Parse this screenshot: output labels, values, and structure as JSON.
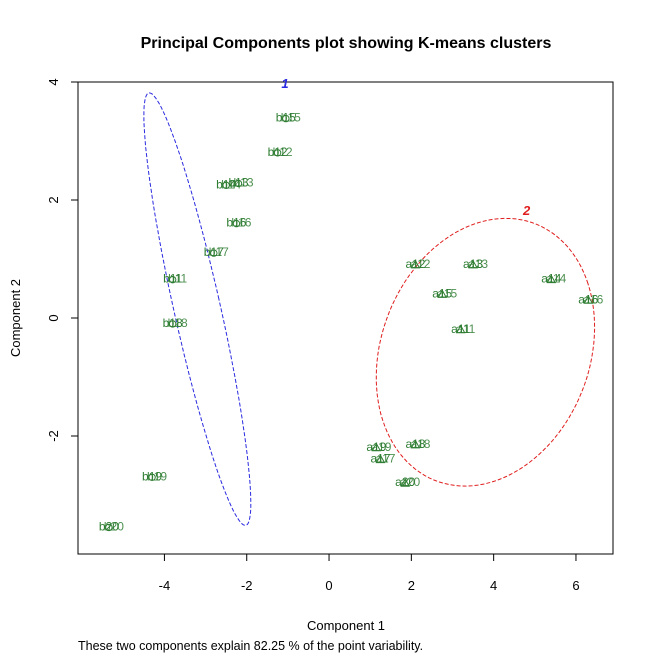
{
  "chart_data": {
    "type": "scatter",
    "title": "Principal Components plot showing K-means clusters",
    "xlabel": "Component 1",
    "ylabel": "Component 2",
    "caption": "These two components explain 82.25 % of the point variability.",
    "xlim": [
      -6.1,
      6.9
    ],
    "ylim": [
      -4.0,
      4.0
    ],
    "xticks": [
      -4,
      -2,
      0,
      2,
      4,
      6
    ],
    "yticks": [
      -2,
      0,
      2,
      4
    ],
    "colors": {
      "points": "#2e7d32",
      "cluster1": "#2a2ae0",
      "cluster2": "#e01e1e"
    },
    "clusters": [
      {
        "label": "1",
        "center": [
          -3.2,
          0.15
        ],
        "rx": 0.55,
        "ry": 3.85,
        "angle_deg": 18.0,
        "label_pos": [
          -1.07,
          3.9
        ]
      },
      {
        "label": "2",
        "center": [
          3.8,
          -0.58
        ],
        "rx": 2.75,
        "ry": 2.15,
        "angle_deg": 25.0,
        "label_pos": [
          4.8,
          1.75
        ]
      }
    ],
    "points": [
      {
        "label": "b15",
        "x": -1.05,
        "y": 3.38,
        "shape": "circle",
        "cluster": 1
      },
      {
        "label": "b12",
        "x": -1.25,
        "y": 2.8,
        "shape": "circle",
        "cluster": 1
      },
      {
        "label": "b14",
        "x": -2.5,
        "y": 2.25,
        "shape": "circle",
        "cluster": 1
      },
      {
        "label": "b13",
        "x": -2.2,
        "y": 2.28,
        "shape": "circle",
        "cluster": 1
      },
      {
        "label": "b16",
        "x": -2.25,
        "y": 1.6,
        "shape": "circle",
        "cluster": 1
      },
      {
        "label": "b17",
        "x": -2.8,
        "y": 1.1,
        "shape": "circle",
        "cluster": 1
      },
      {
        "label": "b11",
        "x": -3.8,
        "y": 0.65,
        "shape": "circle",
        "cluster": 1
      },
      {
        "label": "b18",
        "x": -3.8,
        "y": -0.1,
        "shape": "circle",
        "cluster": 1
      },
      {
        "label": "b19",
        "x": -4.3,
        "y": -2.7,
        "shape": "circle",
        "cluster": 1
      },
      {
        "label": "b20",
        "x": -5.35,
        "y": -3.55,
        "shape": "circle",
        "cluster": 1
      },
      {
        "label": "a12",
        "x": 2.1,
        "y": 0.9,
        "shape": "triangle",
        "cluster": 2
      },
      {
        "label": "a13",
        "x": 3.5,
        "y": 0.9,
        "shape": "triangle",
        "cluster": 2
      },
      {
        "label": "a14",
        "x": 5.4,
        "y": 0.65,
        "shape": "triangle",
        "cluster": 2
      },
      {
        "label": "a16",
        "x": 6.3,
        "y": 0.3,
        "shape": "triangle",
        "cluster": 2
      },
      {
        "label": "a15",
        "x": 2.75,
        "y": 0.4,
        "shape": "triangle",
        "cluster": 2
      },
      {
        "label": "a11",
        "x": 3.2,
        "y": -0.2,
        "shape": "triangle",
        "cluster": 2
      },
      {
        "label": "a18",
        "x": 2.1,
        "y": -2.15,
        "shape": "triangle",
        "cluster": 2
      },
      {
        "label": "a19",
        "x": 1.15,
        "y": -2.2,
        "shape": "triangle",
        "cluster": 2
      },
      {
        "label": "a17",
        "x": 1.25,
        "y": -2.4,
        "shape": "triangle",
        "cluster": 2
      },
      {
        "label": "a20",
        "x": 1.85,
        "y": -2.8,
        "shape": "triangle",
        "cluster": 2
      }
    ]
  }
}
